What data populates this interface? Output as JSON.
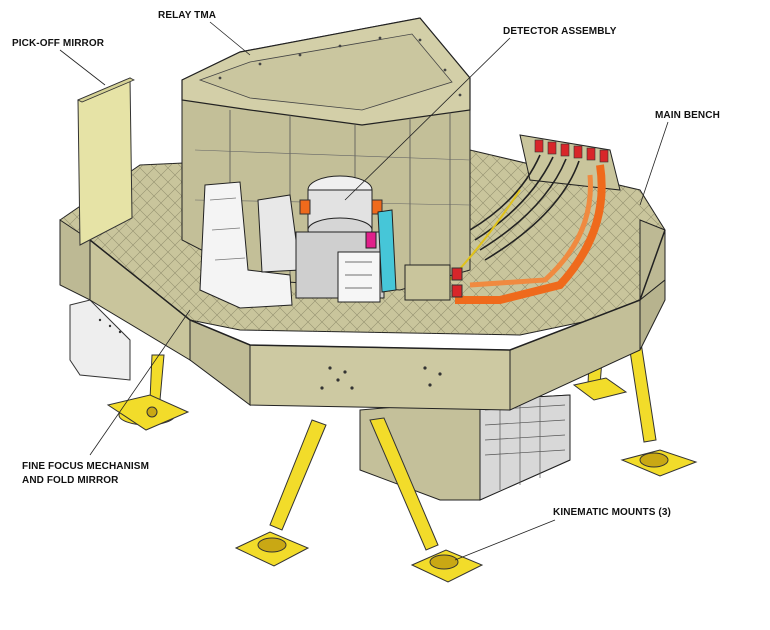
{
  "labels": {
    "relay_tma": "RELAY TMA",
    "pickoff_mirror": "PICK-OFF MIRROR",
    "detector_assembly": "DETECTOR ASSEMBLY",
    "main_bench": "MAIN BENCH",
    "fine_focus_line1": "FINE FOCUS MECHANISM",
    "fine_focus_line2": "AND FOLD MIRROR",
    "kinematic_mounts": "KINEMATIC MOUNTS (3)"
  },
  "colors": {
    "bench": "#c9c59c",
    "bench_dark": "#a8a47c",
    "mirror": "#e6e3a6",
    "mount_yellow": "#f2dc2a",
    "mount_dark": "#c9a814",
    "cable_orange": "#ef6a1c",
    "detector_cyan": "#46c6d8",
    "mechanism_white": "#f4f4f4"
  }
}
